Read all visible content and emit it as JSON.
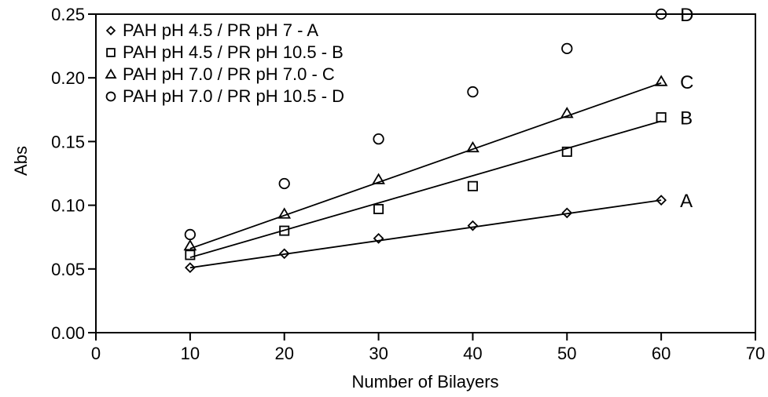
{
  "chart_data": {
    "type": "scatter",
    "title": "",
    "xlabel": "Number of Bilayers",
    "ylabel": "Abs",
    "xlim": [
      0,
      70
    ],
    "ylim": [
      0.0,
      0.25
    ],
    "x_ticks": [
      "0",
      "10",
      "20",
      "30",
      "40",
      "50",
      "60",
      "70"
    ],
    "y_ticks": [
      "0.00",
      "0.05",
      "0.10",
      "0.15",
      "0.20",
      "0.25"
    ],
    "grid": false,
    "legend_position": "top-left",
    "series": [
      {
        "name": "PAH pH 4.5 / PR pH 7 - A",
        "tag": "A",
        "marker": "diamond",
        "x": [
          10,
          20,
          30,
          40,
          50,
          60
        ],
        "y": [
          0.051,
          0.062,
          0.074,
          0.084,
          0.094,
          0.104
        ],
        "fit": [
          [
            10,
            0.051
          ],
          [
            60,
            0.104
          ]
        ]
      },
      {
        "name": "PAH pH 4.5 / PR pH 10.5 - B",
        "tag": "B",
        "marker": "square",
        "x": [
          10,
          20,
          30,
          40,
          50,
          60
        ],
        "y": [
          0.061,
          0.08,
          0.097,
          0.115,
          0.142,
          0.169
        ],
        "fit": [
          [
            10,
            0.059
          ],
          [
            60,
            0.166
          ]
        ]
      },
      {
        "name": "PAH pH 7.0 / PR pH 7.0 - C",
        "tag": "C",
        "marker": "triangle",
        "x": [
          10,
          20,
          30,
          40,
          50,
          60
        ],
        "y": [
          0.068,
          0.093,
          0.12,
          0.145,
          0.172,
          0.197
        ],
        "fit": [
          [
            10,
            0.066
          ],
          [
            60,
            0.196
          ]
        ]
      },
      {
        "name": "PAH pH 7.0 / PR pH 10.5 - D",
        "tag": "D",
        "marker": "circle",
        "x": [
          10,
          20,
          30,
          40,
          50,
          60
        ],
        "y": [
          0.077,
          0.117,
          0.152,
          0.189,
          0.223,
          0.25
        ],
        "fit": null
      }
    ]
  }
}
